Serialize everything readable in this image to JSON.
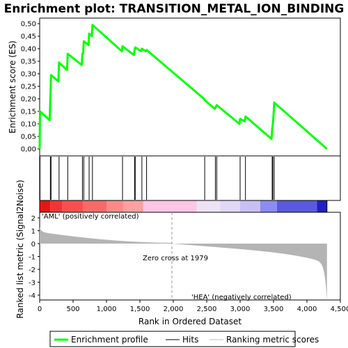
{
  "chart_data": {
    "type": "line",
    "title": "Enrichment plot: TRANSITION_METAL_ION_BINDING",
    "xlabel": "Rank in Ordered Dataset",
    "es_ylabel": "Enrichment score (ES)",
    "metric_ylabel": "Ranked list metric (Signal2Noise)",
    "xlim": [
      0,
      4500
    ],
    "x_ticks": [
      "0",
      "500",
      "1,000",
      "1,500",
      "2,000",
      "2,500",
      "3,000",
      "3,500",
      "4,000",
      "4,500"
    ],
    "x_tick_values": [
      0,
      500,
      1000,
      1500,
      2000,
      2500,
      3000,
      3500,
      4000,
      4500
    ],
    "es_ylim": [
      0.0,
      0.5
    ],
    "es_ticks": [
      "0,00",
      "0,05",
      "0,10",
      "0,15",
      "0,20",
      "0,25",
      "0,30",
      "0,35",
      "0,40",
      "0,45",
      "0,50"
    ],
    "es_tick_values": [
      0.0,
      0.05,
      0.1,
      0.15,
      0.2,
      0.25,
      0.3,
      0.35,
      0.4,
      0.45,
      0.5
    ],
    "metric_ylim": [
      -4.5,
      2.5
    ],
    "metric_ticks": [
      "2",
      "1",
      "0",
      "-1",
      "-2",
      "-3",
      "-4"
    ],
    "metric_tick_values": [
      2,
      1,
      0,
      -1,
      -2,
      -3,
      -4
    ],
    "dataset_size": 4300,
    "hits": [
      5,
      160,
      170,
      290,
      420,
      640,
      660,
      740,
      790,
      1240,
      1420,
      1430,
      1530,
      1600,
      2470,
      2630,
      2650,
      3000,
      3080,
      3480,
      3490,
      3510
    ],
    "es_curve": {
      "x": [
        0,
        5,
        150,
        160,
        170,
        280,
        290,
        410,
        420,
        630,
        640,
        650,
        660,
        730,
        740,
        780,
        790,
        1230,
        1240,
        1410,
        1420,
        1430,
        1520,
        1530,
        1590,
        1600,
        2460,
        2470,
        2620,
        2630,
        2640,
        2650,
        2990,
        3000,
        3070,
        3080,
        3470,
        3480,
        3490,
        3500,
        3510,
        4300
      ],
      "y": [
        0.0,
        0.15,
        0.115,
        0.205,
        0.295,
        0.27,
        0.345,
        0.315,
        0.38,
        0.335,
        0.38,
        0.38,
        0.43,
        0.415,
        0.46,
        0.45,
        0.495,
        0.39,
        0.41,
        0.375,
        0.395,
        0.405,
        0.39,
        0.4,
        0.39,
        0.395,
        0.2,
        0.195,
        0.16,
        0.165,
        0.17,
        0.175,
        0.1,
        0.12,
        0.11,
        0.13,
        0.04,
        0.08,
        0.1,
        0.135,
        0.185,
        0.0
      ]
    },
    "zero_cross": 1979,
    "annotations": {
      "positive": "'AML' (positively correlated)",
      "negative": "'HEA' (negatively correlated)",
      "zero_cross": "Zero cross at 1979"
    },
    "legend": [
      {
        "label": "Enrichment profile",
        "color": "#00ff00"
      },
      {
        "label": "Hits",
        "color": "#000000"
      },
      {
        "label": "Ranking metric scores",
        "color": "#bebebe"
      }
    ],
    "colors": {
      "es_line": "#00ff00",
      "metric_fill": "#b4b4b4",
      "positive_text": "#ff0000",
      "negative_text": "#0000ff"
    }
  }
}
